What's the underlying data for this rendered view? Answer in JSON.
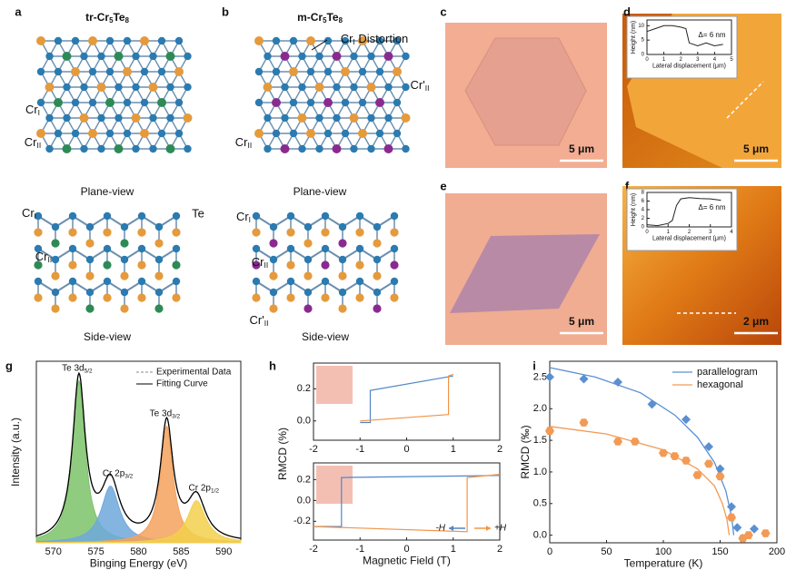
{
  "panels": {
    "a": {
      "label": "a",
      "title": [
        "tr-Cr",
        {
          "sub": "5"
        },
        "Te",
        {
          "sub": "8"
        }
      ],
      "plane_cr1": [
        "Cr",
        {
          "sub": "I"
        }
      ],
      "plane_cr2": [
        "Cr",
        {
          "sub": "II"
        }
      ],
      "plane_caption": "Plane-view",
      "side_cr1": [
        "Cr",
        {
          "sub": "I"
        }
      ],
      "side_te": "Te",
      "side_cr2": [
        "Cr",
        {
          "sub": "II"
        }
      ],
      "side_caption": "Side-view"
    },
    "b": {
      "label": "b",
      "title": [
        "m-Cr",
        {
          "sub": "5"
        },
        "Te",
        {
          "sub": "8"
        }
      ],
      "distortion": [
        "Cr",
        {
          "sub": "I"
        },
        " Distortion"
      ],
      "plane_cr2p": [
        "Cr'",
        {
          "sub": "II"
        }
      ],
      "plane_cr2": [
        "Cr",
        {
          "sub": "II"
        }
      ],
      "plane_caption": "Plane-view",
      "side_cr1": [
        "Cr",
        {
          "sub": "I"
        }
      ],
      "side_cr2": [
        "Cr",
        {
          "sub": "II"
        }
      ],
      "side_cr2p": [
        "Cr'",
        {
          "sub": "II"
        }
      ],
      "side_caption": "Side-view"
    },
    "c": {
      "label": "c",
      "scale": "5 μm"
    },
    "d": {
      "label": "d",
      "scale": "5 μm"
    },
    "e": {
      "label": "e",
      "scale": "5 μm"
    },
    "f": {
      "label": "f",
      "scale": "2 μm"
    },
    "g": {
      "label": "g"
    },
    "h": {
      "label": "h"
    },
    "i": {
      "label": "i"
    }
  },
  "chart_data": [
    {
      "type": "line",
      "xlabel": "Lateral displacement (μm)",
      "ylabel": "Height (nm)",
      "annotation": "Δ= 6 nm",
      "xlim": [
        0,
        5
      ],
      "xticks": [
        0,
        1,
        2,
        3,
        4,
        5
      ],
      "ylim": [
        0,
        12
      ],
      "yticks": [
        0,
        5,
        10
      ],
      "color": "#222",
      "x": [
        0,
        0.5,
        1,
        1.5,
        2,
        2.3,
        2.5,
        3,
        3.5,
        4,
        4.5
      ],
      "values": [
        8,
        9,
        10,
        10,
        9.5,
        9,
        4,
        3,
        4,
        3,
        3.5
      ]
    },
    {
      "type": "line",
      "xlabel": "Lateral displacement (μm)",
      "ylabel": "Height (nm)",
      "annotation": "Δ= 6 nm",
      "xlim": [
        0,
        4
      ],
      "xticks": [
        0,
        1,
        2,
        3,
        4
      ],
      "ylim": [
        0,
        8
      ],
      "yticks": [
        0,
        2,
        4,
        6,
        8
      ],
      "color": "#222",
      "x": [
        0,
        0.5,
        1,
        1.2,
        1.4,
        1.6,
        2,
        2.5,
        3,
        3.5
      ],
      "values": [
        0.5,
        0.3,
        0.8,
        1.5,
        5,
        6.5,
        6.8,
        6.6,
        6.5,
        6.2
      ]
    },
    {
      "type": "peaks",
      "xlabel": "Binging Energy (eV)",
      "ylabel": "Intensity (a.u.)",
      "xlim": [
        568,
        592
      ],
      "xticks": [
        570,
        575,
        580,
        585,
        590
      ],
      "ylim": [
        0,
        112
      ],
      "peaks": [
        {
          "name": [
            "Te 3d",
            {
              "sub": "5/2"
            }
          ],
          "center": 573,
          "height": 100,
          "width": 0.9,
          "color": "#7cc36a"
        },
        {
          "name": [
            "Cr 2p",
            {
              "sub": "3/2"
            }
          ],
          "center": 576.7,
          "height": 35,
          "width": 1.3,
          "color": "#6fa8dc"
        },
        {
          "name": [
            "Te 3d",
            {
              "sub": "3/2"
            }
          ],
          "center": 583.3,
          "height": 72,
          "width": 0.9,
          "color": "#f4a15d"
        },
        {
          "name": [
            "Cr 2p",
            {
              "sub": "1/2"
            }
          ],
          "center": 586.8,
          "height": 26,
          "width": 1.3,
          "color": "#f2d04b"
        }
      ],
      "curves": [
        {
          "name": "Experimental Data",
          "color": "#888",
          "dashed": true
        },
        {
          "name": "Fitting Curve",
          "color": "#000",
          "dashed": false
        }
      ]
    },
    {
      "type": "line",
      "ylabel": "RMCD (%)",
      "xlim": [
        -2,
        2
      ],
      "xticks": [
        -2,
        -1,
        0,
        1,
        2
      ],
      "ylim": [
        -0.12,
        0.36
      ],
      "yticks": [
        {
          "value": 0,
          "label": "0.0"
        },
        0.2
      ],
      "series": [
        {
          "color": "#4f86c6",
          "x": [
            -1,
            -0.78,
            -0.78,
            1
          ],
          "values": [
            -0.01,
            -0.01,
            0.19,
            0.28
          ]
        },
        {
          "color": "#f0954a",
          "x": [
            -1,
            0.9,
            0.9,
            1
          ],
          "values": [
            0,
            0.04,
            0.28,
            0.29
          ]
        }
      ]
    },
    {
      "type": "line",
      "xlabel": "Magnetic Field (T)",
      "xlim": [
        -2,
        2
      ],
      "xticks": [
        -2,
        -1,
        0,
        1,
        2
      ],
      "ylim": [
        -0.38,
        0.36
      ],
      "yticks": [
        -0.2,
        {
          "value": 0,
          "label": "0.0"
        },
        0.2
      ],
      "series": [
        {
          "name": "-H",
          "color": "#4f86c6",
          "x": [
            -2,
            -1.4,
            -1.4,
            2
          ],
          "values": [
            -0.25,
            -0.25,
            0.22,
            0.24
          ]
        },
        {
          "name": "+H",
          "color": "#f0954a",
          "x": [
            -2,
            1.3,
            1.3,
            2
          ],
          "values": [
            -0.25,
            -0.3,
            0.22,
            0.25
          ]
        }
      ]
    },
    {
      "type": "scatter",
      "xlabel": "Temperature (K)",
      "ylabel": "RMCD (‰)",
      "xlim": [
        0,
        200
      ],
      "xticks": [
        0,
        50,
        100,
        150,
        200
      ],
      "ylim": [
        -0.12,
        2.75
      ],
      "yticks": [
        {
          "value": 0,
          "label": "0.0"
        },
        0.5,
        {
          "value": 1,
          "label": "1.0"
        },
        1.5,
        {
          "value": 2,
          "label": "2.0"
        },
        2.5
      ],
      "legend": "upper right",
      "series": [
        {
          "name": "parallelogram",
          "color": "#5b8fd0",
          "marker": "diamond",
          "x": [
            0,
            30,
            60,
            90,
            120,
            140,
            150,
            160,
            165,
            170,
            180
          ],
          "values": [
            2.5,
            2.47,
            2.42,
            2.07,
            1.83,
            1.4,
            1.05,
            0.45,
            0.12,
            -0.05,
            0.1
          ],
          "fit_x": [
            0,
            40,
            80,
            110,
            130,
            145,
            155,
            160,
            162
          ],
          "fit_values": [
            2.65,
            2.5,
            2.25,
            1.9,
            1.55,
            1.15,
            0.7,
            0.3,
            0
          ]
        },
        {
          "name": "hexagonal",
          "color": "#f39a55",
          "marker": "hexagon",
          "x": [
            0,
            30,
            60,
            75,
            100,
            110,
            120,
            130,
            140,
            150,
            160,
            170,
            175,
            190
          ],
          "values": [
            1.65,
            1.78,
            1.48,
            1.48,
            1.3,
            1.25,
            1.18,
            0.95,
            1.13,
            0.93,
            0.28,
            -0.05,
            0,
            0.03
          ],
          "fit_x": [
            0,
            50,
            100,
            130,
            145,
            152,
            156,
            158
          ],
          "fit_values": [
            1.72,
            1.6,
            1.35,
            1.05,
            0.78,
            0.5,
            0.25,
            0
          ]
        }
      ]
    }
  ]
}
